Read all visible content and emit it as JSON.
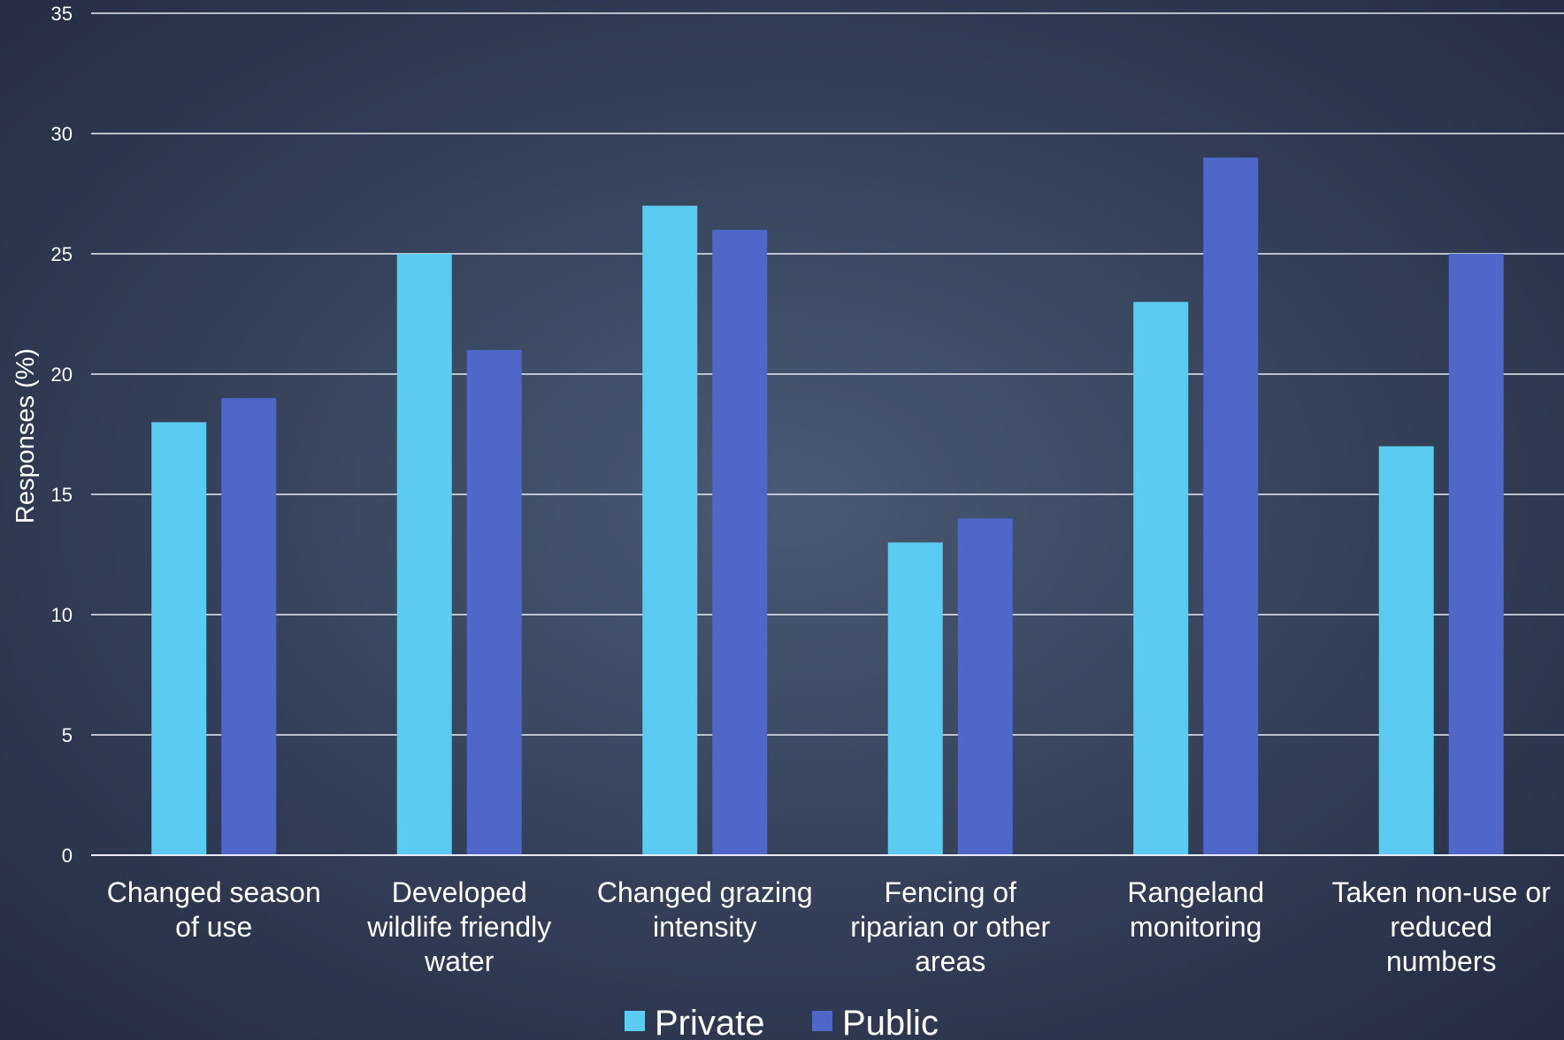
{
  "chart_data": {
    "type": "bar",
    "title": "",
    "xlabel": "",
    "ylabel": "Responses (%)",
    "ylim": [
      0,
      35
    ],
    "yticks": [
      0,
      5,
      10,
      15,
      20,
      25,
      30,
      35
    ],
    "grid": true,
    "legend_position": "bottom",
    "categories": [
      [
        "Changed season",
        "of use"
      ],
      [
        "Developed",
        "wildlife friendly",
        "water"
      ],
      [
        "Changed grazing",
        "intensity"
      ],
      [
        "Fencing of",
        "riparian or other",
        "areas"
      ],
      [
        "Rangeland",
        "monitoring"
      ],
      [
        "Taken non-use or",
        "reduced",
        "numbers"
      ]
    ],
    "series": [
      {
        "name": "Private",
        "color": "#5ccbf2",
        "values": [
          18,
          25,
          27,
          13,
          23,
          17
        ]
      },
      {
        "name": "Public",
        "color": "#4f67c9",
        "values": [
          19,
          21,
          26,
          14,
          29,
          25
        ]
      }
    ]
  }
}
